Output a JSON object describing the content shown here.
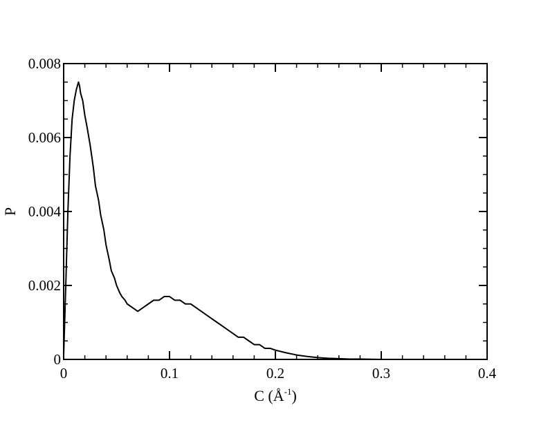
{
  "chart_data": {
    "type": "line",
    "title": "",
    "xlabel": "C (Å-1)",
    "xlabel_parts": {
      "pre": "C (Å",
      "sup": "-1",
      "post": ")"
    },
    "ylabel": "P",
    "xlim": [
      0,
      0.4
    ],
    "ylim": [
      0,
      0.008
    ],
    "x_ticks": [
      0,
      0.1,
      0.2,
      0.3,
      0.4
    ],
    "x_tick_labels": [
      "0",
      "0.1",
      "0.2",
      "0.3",
      "0.4"
    ],
    "y_ticks": [
      0,
      0.002,
      0.004,
      0.006,
      0.008
    ],
    "y_tick_labels": [
      "0",
      "0.002",
      "0.004",
      "0.006",
      "0.008"
    ],
    "x_minor_step": 0.02,
    "y_minor_step": 0.0005,
    "grid": false,
    "legend": "none",
    "line_color": "#000000",
    "series": [
      {
        "x": [
          0.0,
          0.002,
          0.004,
          0.006,
          0.008,
          0.01,
          0.012,
          0.014,
          0.015,
          0.016,
          0.018,
          0.02,
          0.022,
          0.025,
          0.028,
          0.03,
          0.033,
          0.035,
          0.038,
          0.04,
          0.043,
          0.045,
          0.048,
          0.05,
          0.053,
          0.055,
          0.058,
          0.06,
          0.065,
          0.07,
          0.075,
          0.08,
          0.085,
          0.09,
          0.095,
          0.1,
          0.105,
          0.11,
          0.115,
          0.12,
          0.125,
          0.13,
          0.135,
          0.14,
          0.145,
          0.15,
          0.155,
          0.16,
          0.165,
          0.17,
          0.175,
          0.18,
          0.185,
          0.19,
          0.195,
          0.2,
          0.21,
          0.22,
          0.23,
          0.24,
          0.25,
          0.26,
          0.27,
          0.28,
          0.29,
          0.3,
          0.31,
          0.32
        ],
        "y": [
          0.0001,
          0.002,
          0.004,
          0.0055,
          0.0065,
          0.007,
          0.0073,
          0.0075,
          0.0074,
          0.0072,
          0.007,
          0.0066,
          0.0063,
          0.0058,
          0.0052,
          0.0047,
          0.0043,
          0.0039,
          0.0035,
          0.0031,
          0.0027,
          0.0024,
          0.0022,
          0.002,
          0.0018,
          0.0017,
          0.0016,
          0.0015,
          0.0014,
          0.0013,
          0.0014,
          0.0015,
          0.0016,
          0.0016,
          0.0017,
          0.0017,
          0.0016,
          0.0016,
          0.0015,
          0.0015,
          0.0014,
          0.0013,
          0.0012,
          0.0011,
          0.001,
          0.0009,
          0.0008,
          0.0007,
          0.0006,
          0.0006,
          0.0005,
          0.0004,
          0.0004,
          0.0003,
          0.0003,
          0.00025,
          0.00018,
          0.00012,
          8e-05,
          5e-05,
          3e-05,
          2e-05,
          1e-05,
          1e-05,
          5e-06,
          0.0,
          0.0,
          0.0
        ]
      }
    ]
  }
}
